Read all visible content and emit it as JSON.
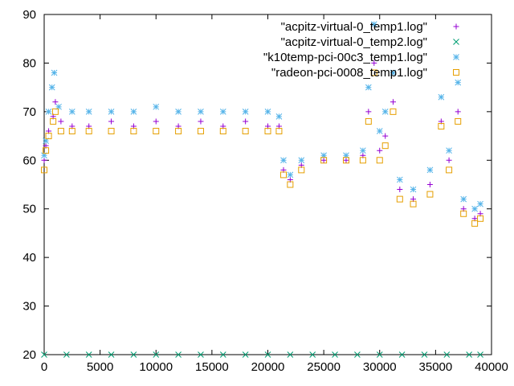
{
  "chart_data": {
    "type": "scatter",
    "title": "",
    "xlabel": "",
    "ylabel": "",
    "xlim": [
      0,
      40000
    ],
    "ylim": [
      20,
      90
    ],
    "x_ticks": [
      0,
      5000,
      10000,
      15000,
      20000,
      25000,
      30000,
      35000,
      40000
    ],
    "y_ticks": [
      20,
      30,
      40,
      50,
      60,
      70,
      80,
      90
    ],
    "x_tick_labels": [
      "0",
      "5000",
      "10000",
      "15000",
      "20000",
      "25000",
      "30000",
      "35000",
      "40000"
    ],
    "y_tick_labels": [
      "20",
      "30",
      "40",
      "50",
      "60",
      "70",
      "80",
      "90"
    ],
    "grid": false,
    "legend_position": "top-right",
    "series": [
      {
        "name": "\"acpitz-virtual-0_temp1.log\"",
        "marker": "plus",
        "color": "#9400d3",
        "points": [
          [
            0,
            60
          ],
          [
            150,
            63
          ],
          [
            400,
            66
          ],
          [
            800,
            69
          ],
          [
            1000,
            72
          ],
          [
            1500,
            68
          ],
          [
            2500,
            67
          ],
          [
            4000,
            67
          ],
          [
            6000,
            68
          ],
          [
            8000,
            67
          ],
          [
            10000,
            68
          ],
          [
            12000,
            67
          ],
          [
            14000,
            68
          ],
          [
            16000,
            67
          ],
          [
            18000,
            68
          ],
          [
            20000,
            67
          ],
          [
            21000,
            67
          ],
          [
            21400,
            58
          ],
          [
            22000,
            56
          ],
          [
            23000,
            59
          ],
          [
            25000,
            60
          ],
          [
            27000,
            60
          ],
          [
            28500,
            61
          ],
          [
            29000,
            70
          ],
          [
            29500,
            80
          ],
          [
            30000,
            62
          ],
          [
            30500,
            65
          ],
          [
            31200,
            72
          ],
          [
            31800,
            54
          ],
          [
            33000,
            52
          ],
          [
            34500,
            55
          ],
          [
            35500,
            68
          ],
          [
            36200,
            60
          ],
          [
            37000,
            70
          ],
          [
            37500,
            50
          ],
          [
            38500,
            48
          ],
          [
            39000,
            49
          ]
        ]
      },
      {
        "name": "\"acpitz-virtual-0_temp2.log\"",
        "marker": "cross",
        "color": "#009e73",
        "points": [
          [
            0,
            20
          ],
          [
            2000,
            20
          ],
          [
            4000,
            20
          ],
          [
            6000,
            20
          ],
          [
            8000,
            20
          ],
          [
            10000,
            20
          ],
          [
            12000,
            20
          ],
          [
            14000,
            20
          ],
          [
            16000,
            20
          ],
          [
            18000,
            20
          ],
          [
            20000,
            20
          ],
          [
            22000,
            20
          ],
          [
            24000,
            20
          ],
          [
            26000,
            20
          ],
          [
            28000,
            20
          ],
          [
            30000,
            20
          ],
          [
            32000,
            20
          ],
          [
            34000,
            20
          ],
          [
            36000,
            20
          ],
          [
            38000,
            20
          ],
          [
            39000,
            20
          ]
        ]
      },
      {
        "name": "\"k10temp-pci-00c3_temp1.log\"",
        "marker": "star",
        "color": "#56b4e9",
        "points": [
          [
            0,
            61
          ],
          [
            150,
            64
          ],
          [
            400,
            70
          ],
          [
            700,
            75
          ],
          [
            900,
            78
          ],
          [
            1300,
            71
          ],
          [
            2500,
            70
          ],
          [
            4000,
            70
          ],
          [
            6000,
            70
          ],
          [
            8000,
            70
          ],
          [
            10000,
            71
          ],
          [
            12000,
            70
          ],
          [
            14000,
            70
          ],
          [
            16000,
            70
          ],
          [
            18000,
            70
          ],
          [
            20000,
            70
          ],
          [
            21000,
            69
          ],
          [
            21400,
            60
          ],
          [
            22000,
            57
          ],
          [
            23000,
            60
          ],
          [
            25000,
            61
          ],
          [
            27000,
            61
          ],
          [
            28500,
            62
          ],
          [
            29000,
            75
          ],
          [
            29500,
            88
          ],
          [
            30000,
            66
          ],
          [
            30500,
            70
          ],
          [
            31200,
            78
          ],
          [
            31800,
            56
          ],
          [
            33000,
            54
          ],
          [
            34500,
            58
          ],
          [
            35500,
            73
          ],
          [
            36200,
            62
          ],
          [
            37000,
            76
          ],
          [
            37500,
            52
          ],
          [
            38500,
            50
          ],
          [
            39000,
            51
          ]
        ]
      },
      {
        "name": "\"radeon-pci-0008_temp1.log\"",
        "marker": "square",
        "color": "#e69f00",
        "points": [
          [
            0,
            58
          ],
          [
            150,
            62
          ],
          [
            400,
            65
          ],
          [
            800,
            68
          ],
          [
            1000,
            70
          ],
          [
            1500,
            66
          ],
          [
            2500,
            66
          ],
          [
            4000,
            66
          ],
          [
            6000,
            66
          ],
          [
            8000,
            66
          ],
          [
            10000,
            66
          ],
          [
            12000,
            66
          ],
          [
            14000,
            66
          ],
          [
            16000,
            66
          ],
          [
            18000,
            66
          ],
          [
            20000,
            66
          ],
          [
            21000,
            66
          ],
          [
            21400,
            57
          ],
          [
            22000,
            55
          ],
          [
            23000,
            58
          ],
          [
            25000,
            60
          ],
          [
            27000,
            60
          ],
          [
            28500,
            60
          ],
          [
            29000,
            68
          ],
          [
            29500,
            78
          ],
          [
            30000,
            60
          ],
          [
            30500,
            63
          ],
          [
            31200,
            70
          ],
          [
            31800,
            52
          ],
          [
            33000,
            51
          ],
          [
            34500,
            53
          ],
          [
            35500,
            67
          ],
          [
            36200,
            58
          ],
          [
            37000,
            68
          ],
          [
            37500,
            49
          ],
          [
            38500,
            47
          ],
          [
            39000,
            48
          ]
        ]
      }
    ]
  }
}
